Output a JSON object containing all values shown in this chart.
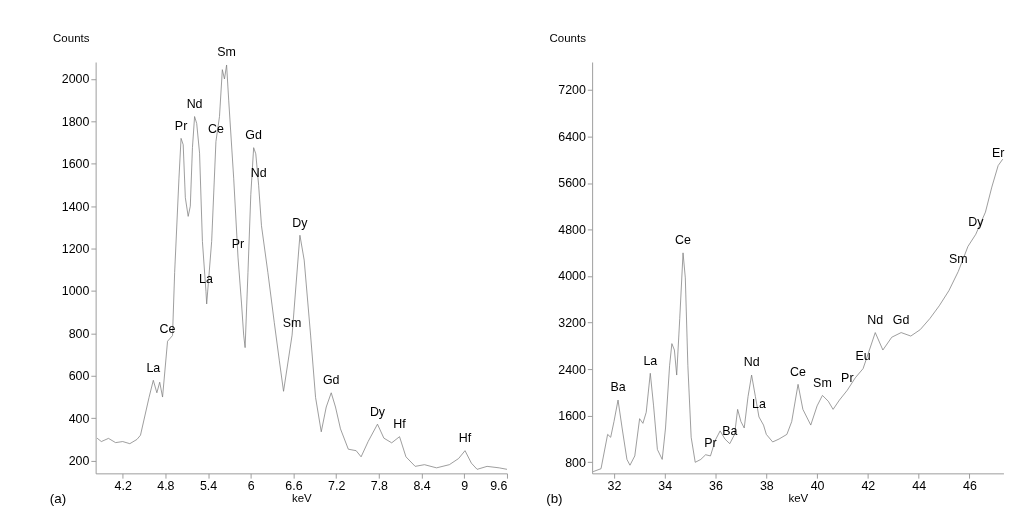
{
  "chart_data": [
    {
      "type": "line",
      "xlabel": "keV",
      "ylabel": "Counts",
      "xlim": [
        3.82,
        9.6
      ],
      "ylim": [
        140,
        2080
      ],
      "xticks": [
        4.2,
        4.8,
        5.4,
        6,
        6.6,
        7.2,
        7.8,
        8.4,
        9,
        9.6
      ],
      "yticks": [
        200,
        400,
        600,
        800,
        1000,
        1200,
        1400,
        1600,
        1800,
        2000
      ],
      "grid": false,
      "x": [
        3.84,
        3.9,
        4.0,
        4.1,
        4.2,
        4.3,
        4.4,
        4.45,
        4.57,
        4.63,
        4.68,
        4.72,
        4.76,
        4.83,
        4.9,
        4.93,
        4.99,
        5.02,
        5.05,
        5.08,
        5.12,
        5.15,
        5.18,
        5.21,
        5.24,
        5.28,
        5.32,
        5.37,
        5.38,
        5.45,
        5.51,
        5.56,
        5.6,
        5.63,
        5.66,
        5.69,
        5.76,
        5.82,
        5.87,
        5.9,
        5.92,
        5.96,
        6.0,
        6.04,
        6.07,
        6.11,
        6.15,
        6.24,
        6.33,
        6.4,
        6.46,
        6.58,
        6.69,
        6.75,
        6.84,
        6.91,
        6.99,
        7.06,
        7.13,
        7.19,
        7.26,
        7.37,
        7.48,
        7.55,
        7.65,
        7.78,
        7.87,
        7.98,
        8.09,
        8.18,
        8.31,
        8.44,
        8.61,
        8.79,
        8.92,
        9.01,
        9.1,
        9.18,
        9.32,
        9.49,
        9.6
      ],
      "series": [
        {
          "color": "#7f7f7f",
          "values": [
            306,
            290,
            305,
            285,
            290,
            280,
            300,
            320,
            498,
            579,
            520,
            570,
            500,
            763,
            790,
            1087,
            1529,
            1720,
            1690,
            1440,
            1352,
            1400,
            1676,
            1823,
            1790,
            1650,
            1234,
            998,
            939,
            1234,
            1705,
            1823,
            2044,
            2000,
            2066,
            1897,
            1529,
            1160,
            939,
            792,
            733,
            1087,
            1455,
            1676,
            1647,
            1499,
            1308,
            1087,
            851,
            674,
            527,
            792,
            1263,
            1146,
            792,
            498,
            336,
            453,
            520,
            453,
            350,
            254,
            247,
            218,
            291,
            372,
            306,
            284,
            313,
            218,
            173,
            181,
            166,
            181,
            210,
            247,
            188,
            159,
            173,
            166,
            159
          ]
        }
      ],
      "annotations": [
        "(a)",
        {
          "text": "La",
          "x": 4.63,
          "y": 579
        },
        {
          "text": "Ce",
          "x": 4.83,
          "y": 763
        },
        {
          "text": "Pr",
          "x": 5.02,
          "y": 1720
        },
        {
          "text": "Nd",
          "x": 5.21,
          "y": 1823
        },
        {
          "text": "Ce",
          "x": 5.51,
          "y": 1705
        },
        {
          "text": "Sm",
          "x": 5.66,
          "y": 2066
        },
        {
          "text": "Gd",
          "x": 6.04,
          "y": 1676
        },
        {
          "text": "Nd",
          "x": 6.11,
          "y": 1499
        },
        {
          "text": "La",
          "x": 5.37,
          "y": 998
        },
        {
          "text": "Pr",
          "x": 5.82,
          "y": 1160
        },
        {
          "text": "Dy",
          "x": 6.69,
          "y": 1263
        },
        {
          "text": "Sm",
          "x": 6.58,
          "y": 792
        },
        {
          "text": "Gd",
          "x": 7.13,
          "y": 520
        },
        {
          "text": "Dy",
          "x": 7.78,
          "y": 372
        },
        {
          "text": "Hf",
          "x": 8.09,
          "y": 313
        },
        {
          "text": "Hf",
          "x": 9.01,
          "y": 247
        }
      ]
    },
    {
      "type": "line",
      "xlabel": "keV",
      "ylabel": "Counts",
      "xlim": [
        31.14,
        47.34
      ],
      "ylim": [
        610,
        7680
      ],
      "xticks": [
        32,
        34,
        36,
        38,
        40,
        42,
        44,
        46
      ],
      "yticks": [
        800,
        1600,
        2400,
        3200,
        4000,
        4800,
        5600,
        6400,
        7200
      ],
      "grid": false,
      "x": [
        31.18,
        31.49,
        31.75,
        31.87,
        32.0,
        32.16,
        32.32,
        32.51,
        32.63,
        32.82,
        33.01,
        33.14,
        33.27,
        33.43,
        33.56,
        33.71,
        33.9,
        34.03,
        34.19,
        34.28,
        34.38,
        34.47,
        34.59,
        34.72,
        34.81,
        34.91,
        35.04,
        35.2,
        35.42,
        35.61,
        35.8,
        35.99,
        36.18,
        36.37,
        36.56,
        36.75,
        36.87,
        37.0,
        37.13,
        37.28,
        37.42,
        37.57,
        37.71,
        37.89,
        38.0,
        38.25,
        38.5,
        38.81,
        39.0,
        39.25,
        39.44,
        39.75,
        40.0,
        40.21,
        40.44,
        40.63,
        40.88,
        41.19,
        41.5,
        41.81,
        42.06,
        42.29,
        42.59,
        42.94,
        43.31,
        43.69,
        44.06,
        44.44,
        44.81,
        45.19,
        45.56,
        45.94,
        46.25,
        46.63,
        46.88,
        47.13,
        47.31
      ],
      "series": [
        {
          "color": "#7f7f7f",
          "values": [
            640,
            690,
            1280,
            1230,
            1500,
            1870,
            1390,
            850,
            750,
            910,
            1550,
            1470,
            1660,
            2330,
            1770,
            1020,
            850,
            1390,
            2460,
            2840,
            2730,
            2300,
            3270,
            4400,
            3970,
            2460,
            1230,
            800,
            850,
            930,
            910,
            1180,
            1340,
            1200,
            1120,
            1280,
            1710,
            1500,
            1390,
            1930,
            2300,
            1930,
            1580,
            1440,
            1280,
            1150,
            1200,
            1280,
            1500,
            2140,
            1710,
            1440,
            1770,
            1950,
            1850,
            1710,
            1870,
            2040,
            2250,
            2410,
            2730,
            3030,
            2730,
            2950,
            3030,
            2970,
            3080,
            3270,
            3490,
            3750,
            4080,
            4510,
            4720,
            5100,
            5530,
            5900,
            6010
          ]
        }
      ],
      "annotations": [
        "(b)",
        {
          "text": "Ba",
          "x": 32.16,
          "y": 1870
        },
        {
          "text": "La",
          "x": 33.43,
          "y": 2330
        },
        {
          "text": "Ce",
          "x": 34.72,
          "y": 4400
        },
        {
          "text": "Pr",
          "x": 35.8,
          "y": 910
        },
        {
          "text": "Ba",
          "x": 36.56,
          "y": 1120
        },
        {
          "text": "Nd",
          "x": 37.42,
          "y": 2300
        },
        {
          "text": "La",
          "x": 37.71,
          "y": 1580
        },
        {
          "text": "Ce",
          "x": 39.25,
          "y": 2140
        },
        {
          "text": "Sm",
          "x": 40.21,
          "y": 1950
        },
        {
          "text": "Pr",
          "x": 41.19,
          "y": 2040
        },
        {
          "text": "Eu",
          "x": 41.81,
          "y": 2410
        },
        {
          "text": "Nd",
          "x": 42.29,
          "y": 3030
        },
        {
          "text": "Gd",
          "x": 43.31,
          "y": 3030
        },
        {
          "text": "Sm",
          "x": 45.56,
          "y": 4080
        },
        {
          "text": "Dy",
          "x": 46.25,
          "y": 4720
        },
        {
          "text": "Er",
          "x": 47.13,
          "y": 5900
        }
      ]
    }
  ]
}
